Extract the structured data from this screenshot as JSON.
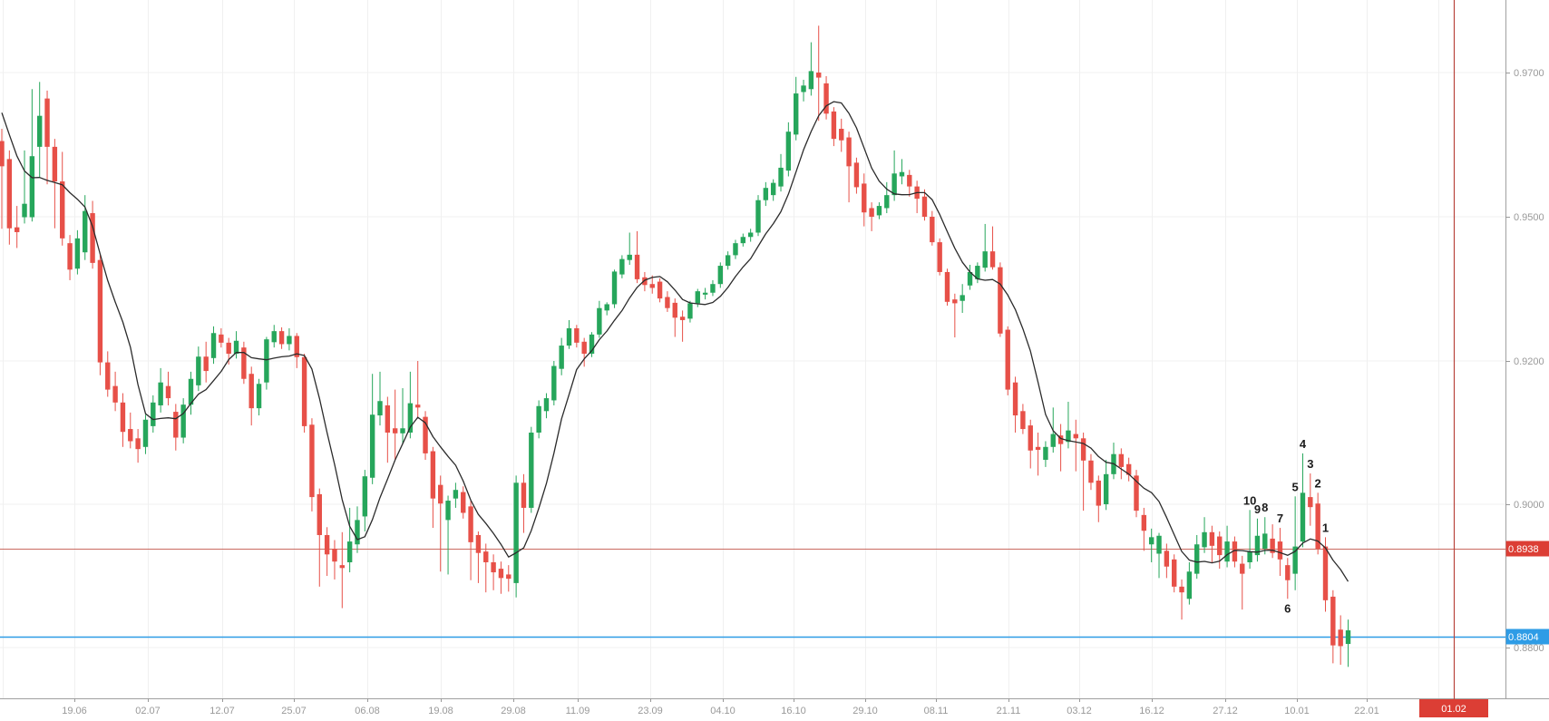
{
  "chart_data": {
    "type": "candlestick",
    "title": "",
    "legend_position": "none",
    "grid": true,
    "y_axis": {
      "side": "right",
      "tick_labels": [
        "0.9700",
        "0.9500",
        "0.9200",
        "0.9000",
        "0.8800"
      ],
      "tick_values": [
        0.97,
        0.95,
        0.92,
        0.9,
        0.88
      ],
      "range_visible": [
        0.876,
        0.978
      ]
    },
    "x_axis": {
      "tick_labels": [
        "19.06",
        "02.07",
        "12.07",
        "25.07",
        "06.08",
        "19.08",
        "29.08",
        "11.09",
        "23.09",
        "04.10",
        "16.10",
        "29.10",
        "08.11",
        "21.11",
        "03.12",
        "16.12",
        "27.12",
        "10.01",
        "22.01"
      ]
    },
    "lines": {
      "resistance": {
        "value": 0.8938,
        "label": "0.8938",
        "color": "#c96b60",
        "tag_color": "#dc3e35"
      },
      "current_price": {
        "value": 0.8804,
        "label": "0.8804",
        "color": "#2e9ce6",
        "tag_color": "#2e9ce6"
      },
      "vertical_event": {
        "label": "01.02",
        "color": "#b8443c",
        "tag_color": "#dc3e35"
      }
    },
    "overlay_ma": {
      "kind": "SMA",
      "period": 7,
      "color": "#2b2b2b",
      "seed_closes": [
        0.969,
        0.9675,
        0.9662,
        0.965,
        0.9638,
        0.9625
      ]
    },
    "annotations": [
      {
        "text": "10",
        "candle": 165,
        "side": "above"
      },
      {
        "text": "9",
        "candle": 166,
        "side": "above"
      },
      {
        "text": "8",
        "candle": 167,
        "side": "above"
      },
      {
        "text": "7",
        "candle": 169,
        "side": "above"
      },
      {
        "text": "6",
        "candle": 170,
        "side": "below"
      },
      {
        "text": "5",
        "candle": 171,
        "side": "above"
      },
      {
        "text": "4",
        "candle": 172,
        "side": "above"
      },
      {
        "text": "3",
        "candle": 173,
        "side": "above"
      },
      {
        "text": "2",
        "candle": 174,
        "side": "above"
      },
      {
        "text": "1",
        "candle": 175,
        "side": "above"
      }
    ],
    "colors": {
      "up_candle": "#26a65b",
      "down_candle": "#e75048",
      "grid": "#f0f0f0",
      "axis_line": "#a0a0a0",
      "axis_text": "#999999",
      "background": "#ffffff"
    },
    "candles_format": "[open, high, low, close]",
    "candles": [
      [
        0.9605,
        0.9622,
        0.9475,
        0.957
      ],
      [
        0.958,
        0.9592,
        0.9442,
        0.9476
      ],
      [
        0.9478,
        0.9515,
        0.9435,
        0.9468
      ],
      [
        0.9499,
        0.9592,
        0.9486,
        0.9518
      ],
      [
        0.9499,
        0.9677,
        0.949,
        0.9584
      ],
      [
        0.9597,
        0.9687,
        0.9555,
        0.964
      ],
      [
        0.9664,
        0.9675,
        0.9545,
        0.9597
      ],
      [
        0.9597,
        0.9608,
        0.9476,
        0.9549
      ],
      [
        0.9549,
        0.959,
        0.944,
        0.9455
      ],
      [
        0.9445,
        0.9462,
        0.9368,
        0.939
      ],
      [
        0.9392,
        0.9472,
        0.938,
        0.9455
      ],
      [
        0.9426,
        0.953,
        0.941,
        0.9508
      ],
      [
        0.9505,
        0.9522,
        0.9392,
        0.9404
      ],
      [
        0.941,
        0.9422,
        0.918,
        0.9198
      ],
      [
        0.9198,
        0.922,
        0.915,
        0.916
      ],
      [
        0.9165,
        0.9185,
        0.913,
        0.9142
      ],
      [
        0.9142,
        0.9155,
        0.908,
        0.9101
      ],
      [
        0.9105,
        0.9128,
        0.9078,
        0.9088
      ],
      [
        0.9092,
        0.9105,
        0.9058,
        0.9077
      ],
      [
        0.908,
        0.9125,
        0.907,
        0.9118
      ],
      [
        0.9109,
        0.9152,
        0.91,
        0.9142
      ],
      [
        0.9138,
        0.919,
        0.9128,
        0.917
      ],
      [
        0.9165,
        0.9185,
        0.9138,
        0.9148
      ],
      [
        0.9129,
        0.914,
        0.9075,
        0.9093
      ],
      [
        0.9093,
        0.9148,
        0.9085,
        0.9139
      ],
      [
        0.9139,
        0.9185,
        0.9125,
        0.9175
      ],
      [
        0.9166,
        0.923,
        0.9158,
        0.9209
      ],
      [
        0.9209,
        0.924,
        0.917,
        0.9186
      ],
      [
        0.9206,
        0.9272,
        0.9196,
        0.9258
      ],
      [
        0.9255,
        0.9268,
        0.9228,
        0.9238
      ],
      [
        0.9238,
        0.9248,
        0.9195,
        0.9215
      ],
      [
        0.9215,
        0.9262,
        0.9205,
        0.9242
      ],
      [
        0.9228,
        0.924,
        0.9168,
        0.9175
      ],
      [
        0.9182,
        0.9192,
        0.911,
        0.9134
      ],
      [
        0.9134,
        0.9175,
        0.9124,
        0.9168
      ],
      [
        0.917,
        0.925,
        0.916,
        0.9245
      ],
      [
        0.9239,
        0.9275,
        0.9228,
        0.9262
      ],
      [
        0.9262,
        0.927,
        0.9225,
        0.9235
      ],
      [
        0.9235,
        0.9268,
        0.9222,
        0.9252
      ],
      [
        0.9252,
        0.9258,
        0.919,
        0.9208
      ],
      [
        0.9208,
        0.9215,
        0.91,
        0.9109
      ],
      [
        0.9111,
        0.912,
        0.899,
        0.901
      ],
      [
        0.9014,
        0.9022,
        0.8885,
        0.8957
      ],
      [
        0.8957,
        0.8968,
        0.89,
        0.893
      ],
      [
        0.8938,
        0.895,
        0.8895,
        0.892
      ],
      [
        0.8915,
        0.8961,
        0.8855,
        0.8911
      ],
      [
        0.8919,
        0.8995,
        0.8905,
        0.8948
      ],
      [
        0.8944,
        0.8997,
        0.8932,
        0.8978
      ],
      [
        0.8983,
        0.9048,
        0.8962,
        0.9039
      ],
      [
        0.9037,
        0.9182,
        0.9028,
        0.9125
      ],
      [
        0.9124,
        0.9185,
        0.911,
        0.9144
      ],
      [
        0.9138,
        0.915,
        0.9058,
        0.91
      ],
      [
        0.9106,
        0.916,
        0.9062,
        0.9099
      ],
      [
        0.9099,
        0.9162,
        0.9085,
        0.9106
      ],
      [
        0.91,
        0.9185,
        0.9092,
        0.9141
      ],
      [
        0.9139,
        0.92,
        0.912,
        0.9135
      ],
      [
        0.9122,
        0.913,
        0.9062,
        0.9071
      ],
      [
        0.9074,
        0.908,
        0.8967,
        0.9008
      ],
      [
        0.9027,
        0.904,
        0.8906,
        0.9001
      ],
      [
        0.8978,
        0.9012,
        0.8902,
        0.9005
      ],
      [
        0.9008,
        0.903,
        0.8995,
        0.902
      ],
      [
        0.9017,
        0.9025,
        0.898,
        0.8988
      ],
      [
        0.8997,
        0.9005,
        0.8894,
        0.8947
      ],
      [
        0.8957,
        0.8962,
        0.889,
        0.8932
      ],
      [
        0.8934,
        0.8945,
        0.8877,
        0.8919
      ],
      [
        0.8919,
        0.893,
        0.888,
        0.8905
      ],
      [
        0.891,
        0.892,
        0.8875,
        0.8897
      ],
      [
        0.8902,
        0.8915,
        0.8878,
        0.8896
      ],
      [
        0.889,
        0.904,
        0.887,
        0.903
      ],
      [
        0.903,
        0.9042,
        0.896,
        0.8995
      ],
      [
        0.8995,
        0.9108,
        0.8988,
        0.91
      ],
      [
        0.91,
        0.9145,
        0.9092,
        0.9137
      ],
      [
        0.913,
        0.9155,
        0.912,
        0.9148
      ],
      [
        0.9145,
        0.92,
        0.9138,
        0.9193
      ],
      [
        0.9189,
        0.9248,
        0.918,
        0.9232
      ],
      [
        0.9232,
        0.9285,
        0.9225,
        0.9268
      ],
      [
        0.9268,
        0.9275,
        0.9228,
        0.9238
      ],
      [
        0.924,
        0.9248,
        0.9192,
        0.9215
      ],
      [
        0.9215,
        0.926,
        0.9208,
        0.9255
      ],
      [
        0.9255,
        0.9325,
        0.9248,
        0.931
      ],
      [
        0.9305,
        0.9322,
        0.9295,
        0.9318
      ],
      [
        0.9318,
        0.939,
        0.931,
        0.9386
      ],
      [
        0.938,
        0.942,
        0.9372,
        0.9412
      ],
      [
        0.941,
        0.9467,
        0.94,
        0.9421
      ],
      [
        0.9421,
        0.947,
        0.9362,
        0.937
      ],
      [
        0.9374,
        0.9385,
        0.9345,
        0.9358
      ],
      [
        0.936,
        0.9378,
        0.934,
        0.9352
      ],
      [
        0.9365,
        0.9372,
        0.9322,
        0.933
      ],
      [
        0.9333,
        0.9345,
        0.9302,
        0.931
      ],
      [
        0.9321,
        0.933,
        0.925,
        0.929
      ],
      [
        0.9292,
        0.9305,
        0.924,
        0.9285
      ],
      [
        0.9288,
        0.9325,
        0.928,
        0.932
      ],
      [
        0.932,
        0.935,
        0.9312,
        0.9345
      ],
      [
        0.9338,
        0.9352,
        0.9328,
        0.9342
      ],
      [
        0.9342,
        0.9368,
        0.9335,
        0.936
      ],
      [
        0.936,
        0.9405,
        0.9352,
        0.9398
      ],
      [
        0.9398,
        0.9428,
        0.939,
        0.942
      ],
      [
        0.942,
        0.9452,
        0.9412,
        0.9445
      ],
      [
        0.9445,
        0.9465,
        0.9438,
        0.9458
      ],
      [
        0.9458,
        0.9475,
        0.9448,
        0.9467
      ],
      [
        0.9467,
        0.953,
        0.946,
        0.9523
      ],
      [
        0.9523,
        0.9548,
        0.9515,
        0.954
      ],
      [
        0.953,
        0.9552,
        0.9522,
        0.9547
      ],
      [
        0.9542,
        0.9587,
        0.9535,
        0.9568
      ],
      [
        0.9564,
        0.9631,
        0.9556,
        0.9618
      ],
      [
        0.9614,
        0.9694,
        0.9606,
        0.9671
      ],
      [
        0.9673,
        0.969,
        0.966,
        0.9682
      ],
      [
        0.9677,
        0.9742,
        0.9668,
        0.9702
      ],
      [
        0.97,
        0.9765,
        0.9633,
        0.9693
      ],
      [
        0.9685,
        0.9695,
        0.9635,
        0.9643
      ],
      [
        0.9646,
        0.9652,
        0.9598,
        0.9608
      ],
      [
        0.9622,
        0.9636,
        0.959,
        0.9606
      ],
      [
        0.961,
        0.9618,
        0.952,
        0.957
      ],
      [
        0.9575,
        0.9582,
        0.9532,
        0.9541
      ],
      [
        0.9546,
        0.956,
        0.948,
        0.9506
      ],
      [
        0.9512,
        0.952,
        0.947,
        0.95
      ],
      [
        0.9502,
        0.952,
        0.9495,
        0.9515
      ],
      [
        0.9512,
        0.9548,
        0.9505,
        0.953
      ],
      [
        0.953,
        0.9592,
        0.9522,
        0.956
      ],
      [
        0.9556,
        0.958,
        0.9545,
        0.9562
      ],
      [
        0.9558,
        0.9565,
        0.9528,
        0.9542
      ],
      [
        0.9542,
        0.955,
        0.9505,
        0.9525
      ],
      [
        0.9528,
        0.9538,
        0.9492,
        0.95
      ],
      [
        0.95,
        0.9508,
        0.944,
        0.9447
      ],
      [
        0.9447,
        0.9455,
        0.9378,
        0.9385
      ],
      [
        0.9385,
        0.9392,
        0.9315,
        0.9323
      ],
      [
        0.9328,
        0.934,
        0.9249,
        0.932
      ],
      [
        0.9325,
        0.936,
        0.93,
        0.9337
      ],
      [
        0.9357,
        0.94,
        0.9348,
        0.9385
      ],
      [
        0.937,
        0.9405,
        0.9362,
        0.9398
      ],
      [
        0.9394,
        0.9485,
        0.9386,
        0.9428
      ],
      [
        0.9428,
        0.948,
        0.939,
        0.9395
      ],
      [
        0.9395,
        0.9405,
        0.925,
        0.9257
      ],
      [
        0.9265,
        0.9272,
        0.9152,
        0.916
      ],
      [
        0.917,
        0.9178,
        0.91,
        0.9124
      ],
      [
        0.913,
        0.914,
        0.9098,
        0.9105
      ],
      [
        0.911,
        0.9118,
        0.905,
        0.9075
      ],
      [
        0.908,
        0.91,
        0.904,
        0.9076
      ],
      [
        0.9062,
        0.9088,
        0.9052,
        0.908
      ],
      [
        0.908,
        0.9135,
        0.9072,
        0.9098
      ],
      [
        0.9096,
        0.9112,
        0.9046,
        0.9084
      ],
      [
        0.9087,
        0.9143,
        0.9078,
        0.9103
      ],
      [
        0.9098,
        0.9118,
        0.9046,
        0.9092
      ],
      [
        0.9092,
        0.91,
        0.8991,
        0.9061
      ],
      [
        0.9061,
        0.907,
        0.902,
        0.903
      ],
      [
        0.9033,
        0.904,
        0.8975,
        0.8998
      ],
      [
        0.9,
        0.9062,
        0.8992,
        0.9042
      ],
      [
        0.9042,
        0.9086,
        0.9035,
        0.907
      ],
      [
        0.907,
        0.9078,
        0.9035,
        0.9052
      ],
      [
        0.9056,
        0.9065,
        0.9032,
        0.9041
      ],
      [
        0.904,
        0.9048,
        0.8982,
        0.8991
      ],
      [
        0.8985,
        0.8995,
        0.8935,
        0.8963
      ],
      [
        0.8944,
        0.8966,
        0.8919,
        0.8954
      ],
      [
        0.8931,
        0.896,
        0.8897,
        0.8956
      ],
      [
        0.8935,
        0.8945,
        0.8897,
        0.8913
      ],
      [
        0.8923,
        0.893,
        0.8877,
        0.8885
      ],
      [
        0.8885,
        0.8895,
        0.8839,
        0.8877
      ],
      [
        0.8868,
        0.8919,
        0.886,
        0.8906
      ],
      [
        0.8903,
        0.8957,
        0.8896,
        0.8944
      ],
      [
        0.894,
        0.8982,
        0.8932,
        0.8961
      ],
      [
        0.8961,
        0.897,
        0.8919,
        0.8942
      ],
      [
        0.8955,
        0.8962,
        0.891,
        0.8929
      ],
      [
        0.892,
        0.897,
        0.8912,
        0.8948
      ],
      [
        0.8948,
        0.8955,
        0.8912,
        0.892
      ],
      [
        0.8917,
        0.8928,
        0.8853,
        0.8903
      ],
      [
        0.8919,
        0.8992,
        0.891,
        0.8934
      ],
      [
        0.8929,
        0.898,
        0.892,
        0.8956
      ],
      [
        0.8938,
        0.8982,
        0.893,
        0.8959
      ],
      [
        0.8952,
        0.8972,
        0.8925,
        0.8932
      ],
      [
        0.8948,
        0.8967,
        0.89,
        0.8923
      ],
      [
        0.8915,
        0.8925,
        0.8868,
        0.8894
      ],
      [
        0.8903,
        0.9011,
        0.888,
        0.8941
      ],
      [
        0.8948,
        0.9071,
        0.894,
        0.9016
      ],
      [
        0.901,
        0.9043,
        0.897,
        0.8996
      ],
      [
        0.9001,
        0.9016,
        0.893,
        0.8938
      ],
      [
        0.8941,
        0.8954,
        0.885,
        0.8866
      ],
      [
        0.8871,
        0.888,
        0.8778,
        0.8803
      ],
      [
        0.8825,
        0.8845,
        0.8776,
        0.8802
      ],
      [
        0.8805,
        0.8839,
        0.8773,
        0.8824
      ]
    ]
  }
}
